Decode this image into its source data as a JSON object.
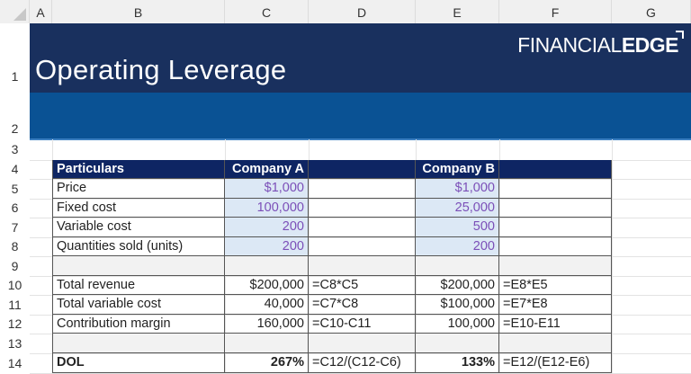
{
  "columns": [
    "A",
    "B",
    "C",
    "D",
    "E",
    "F",
    "G"
  ],
  "rows": [
    "1",
    "2",
    "3",
    "4",
    "5",
    "6",
    "7",
    "8",
    "9",
    "10",
    "11",
    "12",
    "13",
    "14"
  ],
  "banner": {
    "title": "Operating Leverage",
    "logo": "FINANCIALEDGE",
    "colors": {
      "dark": "#19305e",
      "mid": "#0a5294"
    }
  },
  "table": {
    "header": {
      "particulars": "Particulars",
      "company_a": "Company A",
      "company_b": "Company B"
    },
    "inputs": [
      {
        "label": "Price",
        "a": "$1,000",
        "b": "$1,000"
      },
      {
        "label": "Fixed cost",
        "a": "100,000",
        "b": "25,000"
      },
      {
        "label": "Variable cost",
        "a": "200",
        "b": "500"
      },
      {
        "label": "Quantities sold (units)",
        "a": "200",
        "b": "200"
      }
    ],
    "calcs": [
      {
        "label": "Total revenue",
        "a": "$200,000",
        "a_formula": "=C8*C5",
        "b": "$200,000",
        "b_formula": "=E8*E5"
      },
      {
        "label": "Total variable cost",
        "a": "40,000",
        "a_formula": "=C7*C8",
        "b": "$100,000",
        "b_formula": "=E7*E8"
      },
      {
        "label": "Contribution margin",
        "a": "160,000",
        "a_formula": "=C10-C11",
        "b": "100,000",
        "b_formula": "=E10-E11"
      }
    ],
    "dol": {
      "label": "DOL",
      "a": "267%",
      "a_formula": "=C12/(C12-C6)",
      "b": "133%",
      "b_formula": "=E12/(E12-E6)"
    }
  }
}
